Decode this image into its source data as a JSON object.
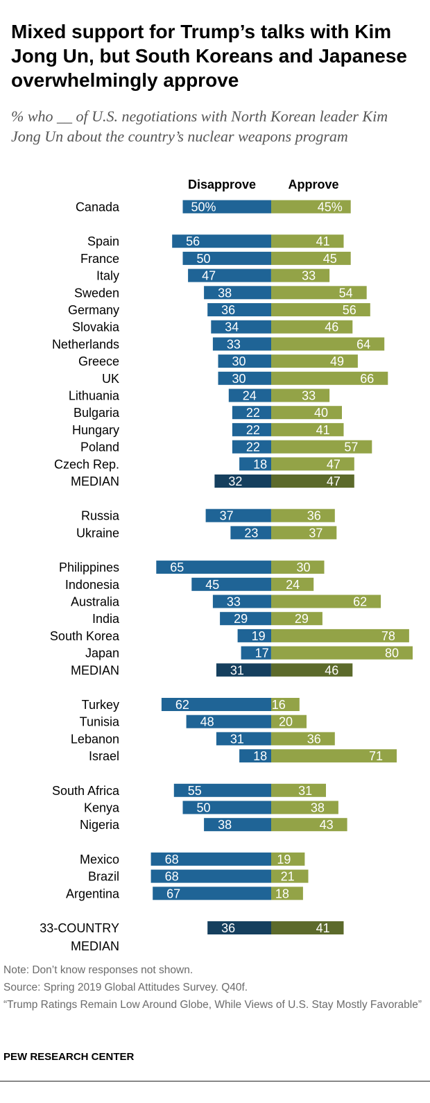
{
  "title": "Mixed support for Trump’s talks with Kim Jong Un, but South Koreans and Japanese overwhelmingly approve",
  "subtitle": "% who __ of U.S. negotiations with North Korean leader Kim Jong Un about the country’s nuclear weapons program",
  "footer": {
    "note": "Note: Don’t know responses not shown.",
    "source": "Source: Spring 2019 Global Attitudes Survey. Q40f.",
    "report": "“Trump Ratings Remain Low Around Globe, While Views of U.S. Stay Mostly Favorable”",
    "brand": "PEW RESEARCH CENTER"
  },
  "colors": {
    "disapprove": "#1f6496",
    "approve": "#93a347",
    "median_disapprove": "#153f5e",
    "median_approve": "#5c6a2b"
  },
  "chart_data": {
    "type": "bar",
    "orientation": "horizontal diverging",
    "legend": [
      "Disapprove",
      "Approve"
    ],
    "rows": [
      {
        "label": "Canada",
        "disapprove": 50,
        "approve": 45,
        "disapprove_label": "50%",
        "approve_label": "45%",
        "group": 0
      },
      {
        "label": "Spain",
        "disapprove": 56,
        "approve": 41,
        "disapprove_label": "56",
        "approve_label": "41",
        "group": 1
      },
      {
        "label": "France",
        "disapprove": 50,
        "approve": 45,
        "disapprove_label": "50",
        "approve_label": "45",
        "group": 1
      },
      {
        "label": "Italy",
        "disapprove": 47,
        "approve": 33,
        "disapprove_label": "47",
        "approve_label": "33",
        "group": 1
      },
      {
        "label": "Sweden",
        "disapprove": 38,
        "approve": 54,
        "disapprove_label": "38",
        "approve_label": "54",
        "group": 1
      },
      {
        "label": "Germany",
        "disapprove": 36,
        "approve": 56,
        "disapprove_label": "36",
        "approve_label": "56",
        "group": 1
      },
      {
        "label": "Slovakia",
        "disapprove": 34,
        "approve": 46,
        "disapprove_label": "34",
        "approve_label": "46",
        "group": 1
      },
      {
        "label": "Netherlands",
        "disapprove": 33,
        "approve": 64,
        "disapprove_label": "33",
        "approve_label": "64",
        "group": 1
      },
      {
        "label": "Greece",
        "disapprove": 30,
        "approve": 49,
        "disapprove_label": "30",
        "approve_label": "49",
        "group": 1
      },
      {
        "label": "UK",
        "disapprove": 30,
        "approve": 66,
        "disapprove_label": "30",
        "approve_label": "66",
        "group": 1
      },
      {
        "label": "Lithuania",
        "disapprove": 24,
        "approve": 33,
        "disapprove_label": "24",
        "approve_label": "33",
        "group": 1
      },
      {
        "label": "Bulgaria",
        "disapprove": 22,
        "approve": 40,
        "disapprove_label": "22",
        "approve_label": "40",
        "group": 1
      },
      {
        "label": "Hungary",
        "disapprove": 22,
        "approve": 41,
        "disapprove_label": "22",
        "approve_label": "41",
        "group": 1
      },
      {
        "label": "Poland",
        "disapprove": 22,
        "approve": 57,
        "disapprove_label": "22",
        "approve_label": "57",
        "group": 1
      },
      {
        "label": "Czech Rep.",
        "disapprove": 18,
        "approve": 47,
        "disapprove_label": "18",
        "approve_label": "47",
        "group": 1
      },
      {
        "label": "MEDIAN",
        "disapprove": 32,
        "approve": 47,
        "disapprove_label": "32",
        "approve_label": "47",
        "group": 1,
        "median": true
      },
      {
        "label": "Russia",
        "disapprove": 37,
        "approve": 36,
        "disapprove_label": "37",
        "approve_label": "36",
        "group": 2
      },
      {
        "label": "Ukraine",
        "disapprove": 23,
        "approve": 37,
        "disapprove_label": "23",
        "approve_label": "37",
        "group": 2
      },
      {
        "label": "Philippines",
        "disapprove": 65,
        "approve": 30,
        "disapprove_label": "65",
        "approve_label": "30",
        "group": 3
      },
      {
        "label": "Indonesia",
        "disapprove": 45,
        "approve": 24,
        "disapprove_label": "45",
        "approve_label": "24",
        "group": 3
      },
      {
        "label": "Australia",
        "disapprove": 33,
        "approve": 62,
        "disapprove_label": "33",
        "approve_label": "62",
        "group": 3
      },
      {
        "label": "India",
        "disapprove": 29,
        "approve": 29,
        "disapprove_label": "29",
        "approve_label": "29",
        "group": 3
      },
      {
        "label": "South Korea",
        "disapprove": 19,
        "approve": 78,
        "disapprove_label": "19",
        "approve_label": "78",
        "group": 3
      },
      {
        "label": "Japan",
        "disapprove": 17,
        "approve": 80,
        "disapprove_label": "17",
        "approve_label": "80",
        "group": 3
      },
      {
        "label": "MEDIAN",
        "disapprove": 31,
        "approve": 46,
        "disapprove_label": "31",
        "approve_label": "46",
        "group": 3,
        "median": true
      },
      {
        "label": "Turkey",
        "disapprove": 62,
        "approve": 16,
        "disapprove_label": "62",
        "approve_label": "16",
        "group": 4
      },
      {
        "label": "Tunisia",
        "disapprove": 48,
        "approve": 20,
        "disapprove_label": "48",
        "approve_label": "20",
        "group": 4
      },
      {
        "label": "Lebanon",
        "disapprove": 31,
        "approve": 36,
        "disapprove_label": "31",
        "approve_label": "36",
        "group": 4
      },
      {
        "label": "Israel",
        "disapprove": 18,
        "approve": 71,
        "disapprove_label": "18",
        "approve_label": "71",
        "group": 4
      },
      {
        "label": "South Africa",
        "disapprove": 55,
        "approve": 31,
        "disapprove_label": "55",
        "approve_label": "31",
        "group": 5
      },
      {
        "label": "Kenya",
        "disapprove": 50,
        "approve": 38,
        "disapprove_label": "50",
        "approve_label": "38",
        "group": 5
      },
      {
        "label": "Nigeria",
        "disapprove": 38,
        "approve": 43,
        "disapprove_label": "38",
        "approve_label": "43",
        "group": 5
      },
      {
        "label": "Mexico",
        "disapprove": 68,
        "approve": 19,
        "disapprove_label": "68",
        "approve_label": "19",
        "group": 6
      },
      {
        "label": "Brazil",
        "disapprove": 68,
        "approve": 21,
        "disapprove_label": "68",
        "approve_label": "21",
        "group": 6
      },
      {
        "label": "Argentina",
        "disapprove": 67,
        "approve": 18,
        "disapprove_label": "67",
        "approve_label": "18",
        "group": 6
      },
      {
        "label": "33-COUNTRY MEDIAN",
        "label_lines": [
          "33-COUNTRY",
          "MEDIAN"
        ],
        "disapprove": 36,
        "approve": 41,
        "disapprove_label": "36",
        "approve_label": "41",
        "group": 7,
        "median": true
      }
    ]
  }
}
